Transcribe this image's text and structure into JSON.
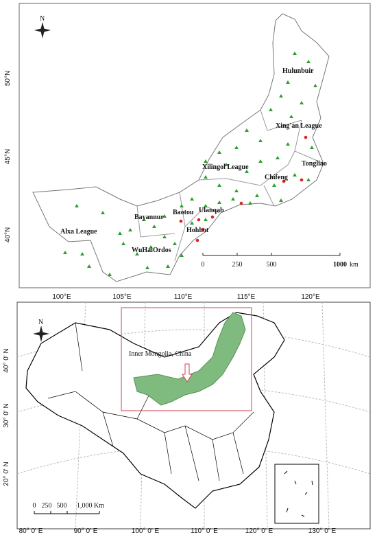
{
  "top_map": {
    "north": "N",
    "lat_labels": [
      "50°N",
      "45°N",
      "40°N"
    ],
    "lon_labels": [
      "100°E",
      "105°E",
      "110°E",
      "115°E",
      "120°E"
    ],
    "regions": [
      "Hulunbuir",
      "Xing'an League",
      "Tongliao",
      "Chifeng",
      "Xilingol League",
      "Ulanqab",
      "Baotou",
      "Bayannur",
      "Hohhot",
      "Alxa League",
      "WuHaiOrdos"
    ],
    "scale": {
      "ticks": [
        "0",
        "250",
        "500"
      ],
      "end": "1000",
      "unit": "km"
    }
  },
  "bottom_map": {
    "north": "N",
    "label": "Inner Mongolia, China",
    "lat_labels": [
      "40° 0' N",
      "30° 0' N",
      "20° 0' N"
    ],
    "lon_labels": [
      "80° 0' E",
      "90° 0' E",
      "100° 0' E",
      "110° 0' E",
      "120° 0' E",
      "130° 0' E"
    ],
    "scale": [
      "0",
      "250",
      "500",
      "1,000 Km"
    ]
  }
}
